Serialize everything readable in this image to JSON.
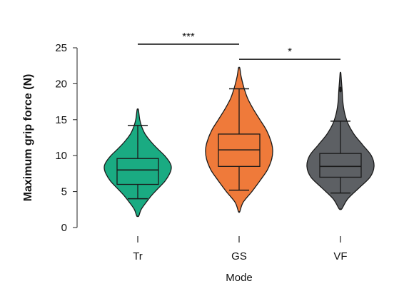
{
  "chart_data": {
    "type": "violin",
    "title": "",
    "xlabel": "Mode",
    "ylabel": "Maximum grip force (N)",
    "ylim": [
      0,
      25
    ],
    "yticks": [
      "0",
      "5",
      "10",
      "15",
      "20",
      "25"
    ],
    "categories": [
      "Tr",
      "GS",
      "VF"
    ],
    "groups": [
      {
        "label": "Tr",
        "color": "#1aab82",
        "min": 1.6,
        "max": 16.4,
        "q1": 6.0,
        "median": 8.0,
        "q3": 9.6,
        "whisker_low": 4.0,
        "whisker_high": 14.2,
        "density": [
          [
            1.6,
            0.03
          ],
          [
            2.5,
            0.1
          ],
          [
            3.5,
            0.25
          ],
          [
            4.5,
            0.42
          ],
          [
            5.5,
            0.62
          ],
          [
            6.5,
            0.82
          ],
          [
            7.5,
            0.95
          ],
          [
            8.3,
            1.0
          ],
          [
            9.0,
            0.96
          ],
          [
            10.0,
            0.8
          ],
          [
            11.0,
            0.58
          ],
          [
            12.0,
            0.38
          ],
          [
            13.0,
            0.22
          ],
          [
            14.0,
            0.12
          ],
          [
            15.0,
            0.06
          ],
          [
            16.4,
            0.02
          ]
        ]
      },
      {
        "label": "GS",
        "color": "#ef7a3a",
        "min": 2.2,
        "max": 22.2,
        "q1": 8.5,
        "median": 10.8,
        "q3": 13.0,
        "whisker_low": 5.2,
        "whisker_high": 19.3,
        "density": [
          [
            2.2,
            0.02
          ],
          [
            3.5,
            0.12
          ],
          [
            5.0,
            0.38
          ],
          [
            6.5,
            0.62
          ],
          [
            8.0,
            0.84
          ],
          [
            9.5,
            0.97
          ],
          [
            10.8,
            1.0
          ],
          [
            12.0,
            0.95
          ],
          [
            13.5,
            0.82
          ],
          [
            15.0,
            0.62
          ],
          [
            16.5,
            0.42
          ],
          [
            18.0,
            0.25
          ],
          [
            19.5,
            0.14
          ],
          [
            21.0,
            0.06
          ],
          [
            22.2,
            0.02
          ]
        ]
      },
      {
        "label": "VF",
        "color": "#5d6064",
        "min": 2.6,
        "max": 21.5,
        "q1": 7.0,
        "median": 8.5,
        "q3": 10.3,
        "whisker_low": 4.8,
        "whisker_high": 14.8,
        "outliers": [
          19.2
        ],
        "density": [
          [
            2.6,
            0.04
          ],
          [
            4.0,
            0.22
          ],
          [
            5.5,
            0.55
          ],
          [
            7.0,
            0.88
          ],
          [
            8.5,
            1.0
          ],
          [
            10.0,
            0.92
          ],
          [
            11.5,
            0.66
          ],
          [
            13.0,
            0.4
          ],
          [
            14.5,
            0.22
          ],
          [
            16.0,
            0.12
          ],
          [
            17.5,
            0.07
          ],
          [
            19.0,
            0.05
          ],
          [
            20.3,
            0.03
          ],
          [
            21.5,
            0.01
          ]
        ]
      }
    ],
    "significance": [
      {
        "from": "Tr",
        "to": "GS",
        "y": 25.5,
        "label": "***"
      },
      {
        "from": "GS",
        "to": "VF",
        "y": 23.4,
        "label": "*"
      }
    ]
  }
}
